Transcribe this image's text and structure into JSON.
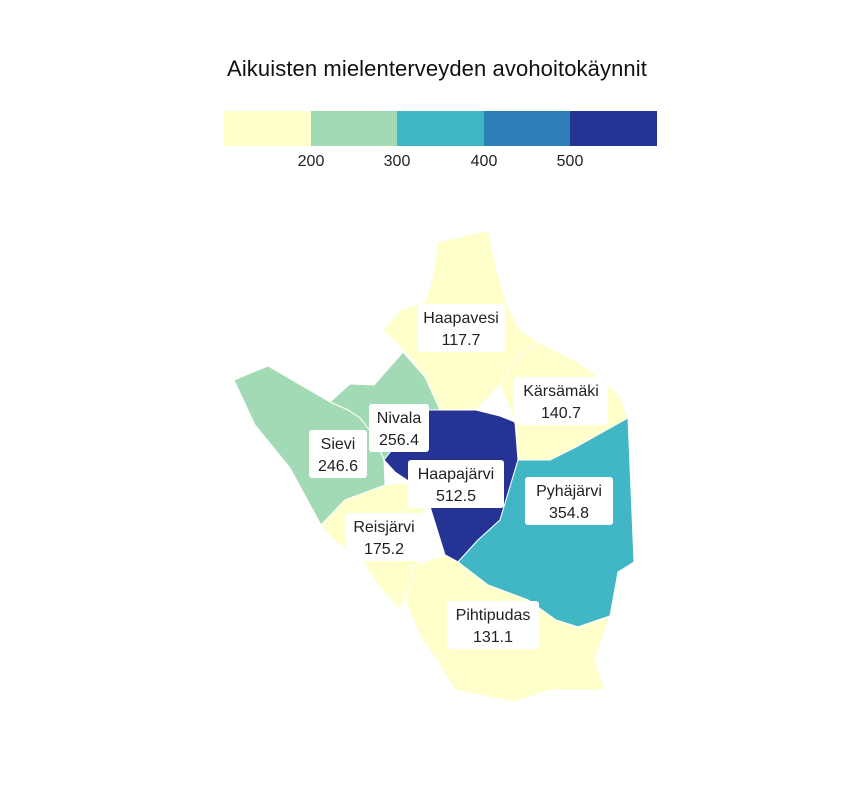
{
  "title": "Aikuisten mielenterveyden avohoitokäynnit",
  "legend": {
    "colors": [
      "#ffffcc",
      "#a1dab4",
      "#41b6c4",
      "#2c7fb8",
      "#253494"
    ],
    "ticks": [
      "200",
      "300",
      "400",
      "500"
    ]
  },
  "regions": [
    {
      "name": "Haapavesi",
      "value": "117.7",
      "color": "#ffffcc"
    },
    {
      "name": "Kärsämäki",
      "value": "140.7",
      "color": "#ffffcc"
    },
    {
      "name": "Nivala",
      "value": "256.4",
      "color": "#a1dab4"
    },
    {
      "name": "Sievi",
      "value": "246.6",
      "color": "#a1dab4"
    },
    {
      "name": "Haapajärvi",
      "value": "512.5",
      "color": "#253494"
    },
    {
      "name": "Pyhäjärvi",
      "value": "354.8",
      "color": "#41b6c4"
    },
    {
      "name": "Reisjärvi",
      "value": "175.2",
      "color": "#ffffcc"
    },
    {
      "name": "Pihtipudas",
      "value": "131.1",
      "color": "#ffffcc"
    }
  ]
}
